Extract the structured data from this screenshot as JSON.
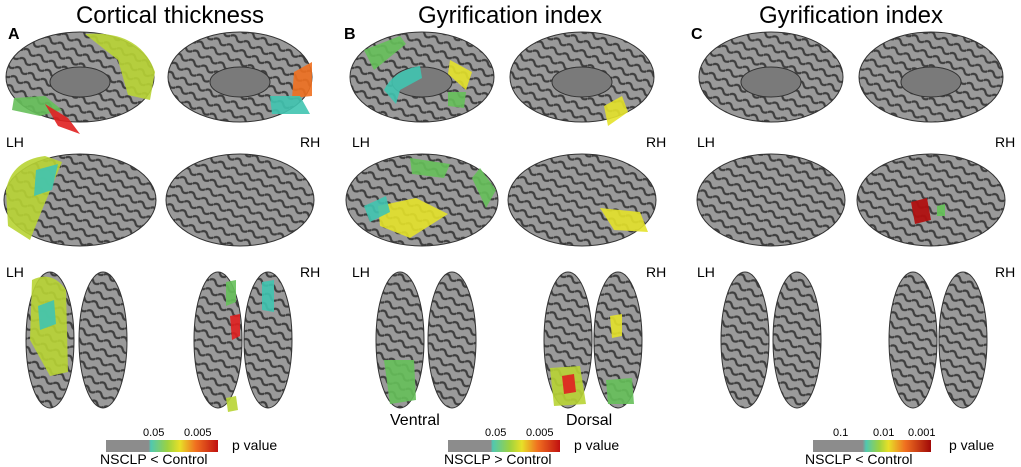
{
  "panels": [
    {
      "letter": "A",
      "title": "Cortical thickness",
      "left_hemi": "LH",
      "right_hemi": "RH",
      "legend": {
        "ticks": [
          "0.05",
          "0.005"
        ],
        "pval": "p value",
        "comparison": "NSCLP < Control"
      }
    },
    {
      "letter": "B",
      "title": "Gyrification index",
      "left_hemi": "LH",
      "right_hemi": "RH",
      "ventral": "Ventral",
      "dorsal": "Dorsal",
      "legend": {
        "ticks": [
          "0.05",
          "0.005"
        ],
        "pval": "p value",
        "comparison": "NSCLP > Control"
      }
    },
    {
      "letter": "C",
      "title": "Gyrification index",
      "left_hemi": "LH",
      "right_hemi": "RH",
      "legend": {
        "ticks": [
          "0.1",
          "0.01",
          "0.001"
        ],
        "pval": "p value",
        "comparison": "NSCLP < Control"
      }
    }
  ],
  "colors": {
    "brain_gray": "#8a8a8a",
    "sulcus_dark": "#4a4a4a",
    "scale_gray": "#8c8c8c",
    "green": "#66c05a",
    "yellow_green": "#b8d434",
    "yellow": "#e4e22a",
    "cyan": "#40c4b0",
    "orange": "#f07020",
    "red": "#e02020",
    "dark_red": "#b01010"
  }
}
